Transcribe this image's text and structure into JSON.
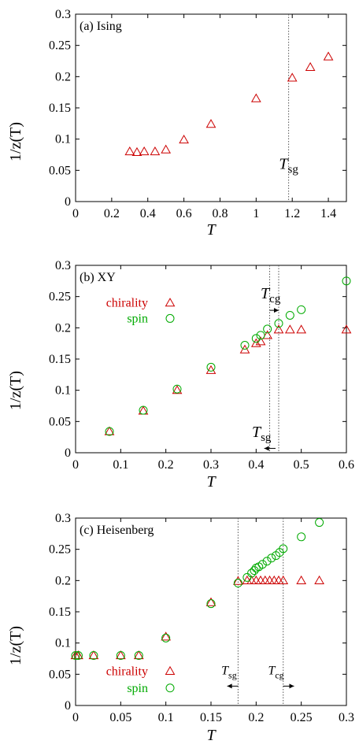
{
  "colors": {
    "chirality": "#cc0000",
    "spin": "#00aa00",
    "axis": "#000000",
    "guide": "#555555"
  },
  "chart_data": [
    {
      "type": "scatter",
      "title": "(a) Ising",
      "xlabel": "T",
      "ylabel": "1/z(T)",
      "xlim": [
        0,
        1.5
      ],
      "ylim": [
        0,
        0.3
      ],
      "xticks": [
        0,
        0.2,
        0.4,
        0.6,
        0.8,
        1,
        1.2,
        1.4
      ],
      "xtick_labels": [
        "0",
        "0.2",
        "0.4",
        "0.6",
        "0.8",
        "1",
        "1.2",
        "1.4"
      ],
      "yticks": [
        0,
        0.05,
        0.1,
        0.15,
        0.2,
        0.25,
        0.3
      ],
      "ytick_labels": [
        "0",
        "0.05",
        "0.1",
        "0.15",
        "0.2",
        "0.25",
        "0.3"
      ],
      "series": [
        {
          "marker": "triangle",
          "color": "#cc0000",
          "x": [
            0.3,
            0.34,
            0.38,
            0.44,
            0.5,
            0.6,
            0.75,
            1.0,
            1.2,
            1.3,
            1.4
          ],
          "y": [
            0.08,
            0.079,
            0.08,
            0.08,
            0.083,
            0.099,
            0.124,
            0.165,
            0.198,
            0.215,
            0.232
          ]
        }
      ],
      "vlines": [
        {
          "x": 1.18
        }
      ],
      "annotations": [
        {
          "main": "T",
          "sub": "sg",
          "x": 1.18,
          "y": 0.052
        }
      ]
    },
    {
      "type": "scatter",
      "title": "(b) XY",
      "xlabel": "T",
      "ylabel": "1/z(T)",
      "xlim": [
        0,
        0.6
      ],
      "ylim": [
        0,
        0.3
      ],
      "xticks": [
        0,
        0.1,
        0.2,
        0.3,
        0.4,
        0.5,
        0.6
      ],
      "xtick_labels": [
        "0",
        "0.1",
        "0.2",
        "0.3",
        "0.4",
        "0.5",
        "0.6"
      ],
      "yticks": [
        0,
        0.05,
        0.1,
        0.15,
        0.2,
        0.25,
        0.3
      ],
      "ytick_labels": [
        "0",
        "0.05",
        "0.1",
        "0.15",
        "0.2",
        "0.25",
        "0.3"
      ],
      "legend": {
        "placement": "upper-left",
        "entries": [
          "chirality",
          "spin"
        ]
      },
      "series": [
        {
          "name": "chirality",
          "marker": "triangle",
          "color": "#cc0000",
          "x": [
            0.075,
            0.15,
            0.225,
            0.3,
            0.375,
            0.4,
            0.41,
            0.425,
            0.45,
            0.475,
            0.5,
            0.6
          ],
          "y": [
            0.034,
            0.067,
            0.1,
            0.132,
            0.165,
            0.175,
            0.178,
            0.188,
            0.197,
            0.197,
            0.197,
            0.197
          ]
        },
        {
          "name": "spin",
          "marker": "circle",
          "color": "#00aa00",
          "x": [
            0.075,
            0.15,
            0.225,
            0.3,
            0.375,
            0.4,
            0.41,
            0.425,
            0.45,
            0.475,
            0.5,
            0.6
          ],
          "y": [
            0.034,
            0.068,
            0.102,
            0.137,
            0.172,
            0.183,
            0.188,
            0.198,
            0.207,
            0.22,
            0.229,
            0.275
          ]
        }
      ],
      "vlines": [
        {
          "x": 0.43
        },
        {
          "x": 0.45
        }
      ],
      "annotations": [
        {
          "main": "T",
          "sub": "cg",
          "x": 0.432,
          "y": 0.247,
          "arrow_from": 0.43,
          "arrow_to": 0.45,
          "arrow_y": 0.228,
          "arrow_dir": "right"
        },
        {
          "main": "T",
          "sub": "sg",
          "x": 0.412,
          "y": 0.025,
          "arrow_from": 0.418,
          "arrow_to": 0.443,
          "arrow_y": 0.007,
          "arrow_dir": "left"
        }
      ]
    },
    {
      "type": "scatter",
      "title": "(c) Heisenberg",
      "xlabel": "T",
      "ylabel": "1/z(T)",
      "xlim": [
        0,
        0.3
      ],
      "ylim": [
        0,
        0.3
      ],
      "xticks": [
        0,
        0.05,
        0.1,
        0.15,
        0.2,
        0.25,
        0.3
      ],
      "xtick_labels": [
        "0",
        "0.05",
        "0.1",
        "0.15",
        "0.2",
        "0.25",
        "0.3"
      ],
      "yticks": [
        0,
        0.05,
        0.1,
        0.15,
        0.2,
        0.25,
        0.3
      ],
      "ytick_labels": [
        "0",
        "0.05",
        "0.1",
        "0.15",
        "0.2",
        "0.25",
        "0.3"
      ],
      "legend": {
        "placement": "lower-left",
        "entries": [
          "chirality",
          "spin"
        ]
      },
      "series": [
        {
          "name": "chirality",
          "marker": "triangle",
          "color": "#cc0000",
          "x": [
            0.0,
            0.003,
            0.02,
            0.05,
            0.07,
            0.1,
            0.15,
            0.18,
            0.19,
            0.195,
            0.2,
            0.205,
            0.21,
            0.215,
            0.22,
            0.225,
            0.23,
            0.25,
            0.27
          ],
          "y": [
            0.08,
            0.08,
            0.08,
            0.08,
            0.08,
            0.11,
            0.165,
            0.199,
            0.2,
            0.2,
            0.2,
            0.2,
            0.2,
            0.2,
            0.2,
            0.2,
            0.2,
            0.2,
            0.2
          ]
        },
        {
          "name": "spin",
          "marker": "circle",
          "color": "#00aa00",
          "x": [
            0.0,
            0.003,
            0.02,
            0.05,
            0.07,
            0.1,
            0.15,
            0.18,
            0.19,
            0.195,
            0.198,
            0.2,
            0.203,
            0.207,
            0.212,
            0.217,
            0.222,
            0.226,
            0.23,
            0.25,
            0.27
          ],
          "y": [
            0.08,
            0.08,
            0.08,
            0.08,
            0.08,
            0.108,
            0.163,
            0.196,
            0.205,
            0.212,
            0.216,
            0.22,
            0.222,
            0.226,
            0.231,
            0.236,
            0.24,
            0.245,
            0.251,
            0.27,
            0.293
          ]
        }
      ],
      "vlines": [
        {
          "x": 0.18
        },
        {
          "x": 0.23
        }
      ],
      "annotations": [
        {
          "main": "T",
          "sub": "sg",
          "x": 0.17,
          "y": 0.05,
          "arrow_from": 0.168,
          "arrow_to": 0.18,
          "arrow_y": 0.031,
          "arrow_dir": "left"
        },
        {
          "main": "T",
          "sub": "cg",
          "x": 0.222,
          "y": 0.05,
          "arrow_from": 0.23,
          "arrow_to": 0.242,
          "arrow_y": 0.031,
          "arrow_dir": "right"
        }
      ]
    }
  ]
}
